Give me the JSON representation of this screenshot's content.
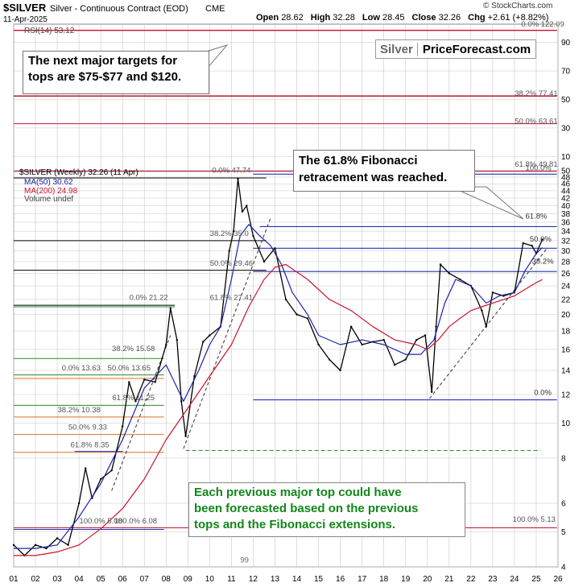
{
  "header": {
    "symbol": "$SILVER",
    "description": "Silver - Continuous Contract (EOD)",
    "exchange": "CME",
    "date": "11-Apr-2025",
    "credit": "© StockCharts.com",
    "open_label": "Open",
    "open": "28.62",
    "high_label": "High",
    "high": "32.28",
    "low_label": "Low",
    "low": "28.45",
    "close_label": "Close",
    "close": "32.26",
    "chg_label": "Chg",
    "chg": "+2.61 (+8.82%)"
  },
  "brand": {
    "part1": "Silver",
    "part2": "PriceForecast.com"
  },
  "callouts": {
    "top": [
      "The next major targets for",
      "tops are $75-$77 and $120."
    ],
    "fib": [
      "The 61.8% Fibonacci",
      "retracement was reached."
    ],
    "bottom": [
      "Each previous major top could have",
      "been forecasted based on the previous",
      "tops and the Fibonacci extensions."
    ]
  },
  "colors": {
    "price": "#000000",
    "ma50": "#1a24a8",
    "ma200": "#c8142c",
    "red_line": "#c8102e",
    "blue_line": "#2731b8",
    "green_line": "#2c8a2c",
    "orange_line": "#e07020",
    "black_line": "#000000",
    "grid": "#c8c8c8"
  },
  "chart_data": {
    "type": "line",
    "title": "$SILVER Silver - Continuous Contract (EOD) CME",
    "scale": "log",
    "ylim": [
      3.8,
      52
    ],
    "x_ticks": [
      "01",
      "02",
      "03",
      "04",
      "05",
      "06",
      "07",
      "08",
      "09",
      "10",
      "11",
      "12",
      "13",
      "14",
      "15",
      "16",
      "17",
      "18",
      "19",
      "20",
      "21",
      "22",
      "23",
      "24",
      "25",
      "26"
    ],
    "y_ticks": [
      4,
      5,
      6,
      8,
      10,
      12,
      14,
      16,
      18,
      20,
      22,
      24,
      26,
      28,
      30,
      32,
      34,
      36,
      38,
      40,
      42,
      44,
      46,
      48,
      50
    ],
    "upper_axis_ticks": [
      10,
      30,
      50,
      70,
      90
    ],
    "legend": {
      "rsi": "RSI(14) 53.12",
      "price": "$SILVER (Weekly) 32.26 (11 Apr)",
      "ma50": "MA(50) 30.62",
      "ma200": "MA(200) 24.98",
      "volume": "Volume undef"
    },
    "series": [
      {
        "name": "$SILVER (Weekly) 32.26 (11 Apr)",
        "x": [
          2001.0,
          2001.5,
          2002.0,
          2002.5,
          2003.0,
          2003.5,
          2004.0,
          2004.3,
          2004.6,
          2005.0,
          2005.5,
          2006.0,
          2006.3,
          2006.6,
          2007.0,
          2007.5,
          2008.0,
          2008.2,
          2008.5,
          2008.7,
          2008.9,
          2009.3,
          2009.7,
          2010.0,
          2010.5,
          2010.9,
          2011.1,
          2011.3,
          2011.5,
          2011.7,
          2012.0,
          2012.5,
          2013.0,
          2013.5,
          2014.0,
          2014.5,
          2015.0,
          2015.5,
          2016.0,
          2016.5,
          2017.0,
          2017.5,
          2018.0,
          2018.5,
          2019.0,
          2019.5,
          2019.9,
          2020.2,
          2020.4,
          2020.6,
          2021.0,
          2021.5,
          2022.0,
          2022.5,
          2022.7,
          2023.0,
          2023.5,
          2024.0,
          2024.4,
          2024.8,
          2025.0,
          2025.28
        ],
        "values": [
          4.6,
          4.3,
          4.6,
          4.5,
          4.8,
          4.6,
          6.0,
          7.5,
          6.2,
          7.0,
          7.4,
          9.8,
          13.0,
          11.5,
          13.2,
          13.0,
          16.5,
          20.8,
          17.0,
          11.5,
          9.2,
          13.5,
          16.8,
          17.5,
          18.5,
          30.0,
          34.0,
          47.5,
          38.5,
          40.0,
          33.0,
          28.0,
          30.5,
          22.0,
          20.0,
          19.5,
          16.5,
          15.0,
          14.0,
          18.5,
          16.5,
          16.8,
          17.0,
          14.5,
          15.0,
          17.0,
          17.5,
          12.2,
          18.5,
          27.5,
          26.0,
          25.0,
          24.0,
          20.5,
          18.5,
          23.0,
          22.5,
          23.0,
          31.5,
          31.0,
          29.5,
          32.26
        ]
      },
      {
        "name": "MA(50) 30.62",
        "x": [
          2001.0,
          2002.0,
          2003.0,
          2004.0,
          2005.0,
          2006.0,
          2007.0,
          2008.0,
          2008.8,
          2009.5,
          2010.0,
          2010.5,
          2011.0,
          2011.4,
          2011.8,
          2012.3,
          2012.8,
          2013.3,
          2013.8,
          2014.5,
          2015.0,
          2016.0,
          2017.0,
          2018.0,
          2019.0,
          2019.7,
          2020.3,
          2020.8,
          2021.3,
          2022.0,
          2022.7,
          2023.3,
          2024.0,
          2024.5,
          2025.0,
          2025.28
        ],
        "values": [
          4.5,
          4.5,
          4.6,
          5.5,
          6.8,
          9.0,
          12.5,
          14.5,
          11.5,
          14.0,
          16.5,
          18.5,
          25.0,
          33.0,
          35.5,
          33.0,
          31.0,
          27.5,
          23.0,
          20.0,
          17.5,
          16.5,
          17.0,
          16.5,
          15.5,
          15.5,
          17.0,
          21.5,
          25.0,
          24.0,
          21.5,
          22.5,
          23.0,
          26.5,
          29.5,
          30.62
        ]
      },
      {
        "name": "MA(200) 24.98",
        "x": [
          2001.0,
          2002.0,
          2003.0,
          2004.0,
          2005.0,
          2006.0,
          2007.0,
          2008.0,
          2009.0,
          2010.0,
          2011.0,
          2011.8,
          2012.5,
          2013.0,
          2013.5,
          2014.5,
          2015.5,
          2016.5,
          2017.5,
          2018.5,
          2019.5,
          2020.0,
          2020.5,
          2021.0,
          2021.5,
          2022.0,
          2022.5,
          2023.0,
          2023.5,
          2024.0,
          2024.5,
          2025.0,
          2025.28
        ],
        "values": [
          4.3,
          4.3,
          4.4,
          4.6,
          5.1,
          5.8,
          7.0,
          9.0,
          11.0,
          13.5,
          16.5,
          21.0,
          25.0,
          27.0,
          27.5,
          25.0,
          22.0,
          20.5,
          18.5,
          17.0,
          16.5,
          16.0,
          17.0,
          18.5,
          19.5,
          20.5,
          21.0,
          21.5,
          22.0,
          22.5,
          23.5,
          24.5,
          24.98
        ]
      }
    ],
    "annotations": [
      "0.0% 122.09",
      "38.2% 77.41",
      "50.0% 63.61",
      "61.8% 49.81",
      "100.0%",
      "0.0% 47.74",
      "38.2% 35.0",
      "50.0% 29.46",
      "61.8% 27.41",
      "0.0% 21.22",
      "38.2% 15.58",
      "50.0% 13.65",
      "61.8% 11.25",
      "0.0% 13.63",
      "38.2% 10.38",
      "50.0% 9.33",
      "61.8% 8.35",
      "100.0% 5.08",
      "100.0% 6.08",
      "100.0% 5.13",
      "61.8%",
      "50.0%",
      "38.2%",
      "0.0%",
      "99"
    ]
  }
}
